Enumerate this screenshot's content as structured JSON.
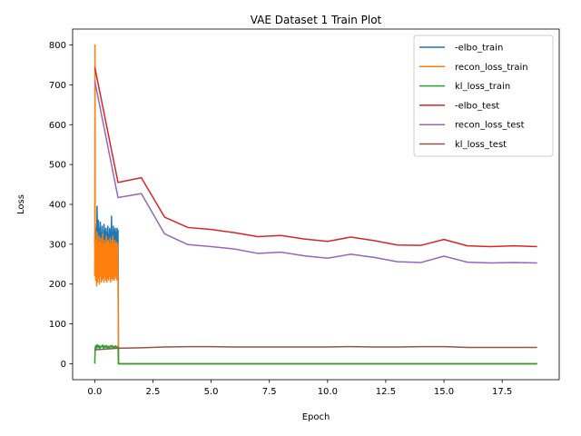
{
  "chart_data": {
    "type": "line",
    "title": "VAE Dataset 1 Train Plot",
    "xlabel": "Epoch",
    "ylabel": "Loss",
    "xlim": [
      -0.95,
      19.95
    ],
    "ylim": [
      -40,
      840
    ],
    "xticks": [
      0,
      2.5,
      5,
      7.5,
      10,
      12.5,
      15,
      17.5
    ],
    "xtick_labels": [
      "0.0",
      "2.5",
      "5.0",
      "7.5",
      "10.0",
      "12.5",
      "15.0",
      "17.5"
    ],
    "yticks": [
      0,
      100,
      200,
      300,
      400,
      500,
      600,
      700,
      800
    ],
    "ytick_labels": [
      "0",
      "100",
      "200",
      "300",
      "400",
      "500",
      "600",
      "700",
      "800"
    ],
    "legend_position": "top-right",
    "series": [
      {
        "name": "-elbo_train",
        "color": "#1f77b4",
        "x": [
          0,
          0.02,
          0.04,
          0.06,
          0.08,
          0.1,
          0.12,
          0.14,
          0.16,
          0.18,
          0.2,
          0.22,
          0.24,
          0.26,
          0.28,
          0.3,
          0.32,
          0.34,
          0.36,
          0.38,
          0.4,
          0.42,
          0.44,
          0.46,
          0.48,
          0.5,
          0.52,
          0.54,
          0.56,
          0.58,
          0.6,
          0.62,
          0.64,
          0.66,
          0.68,
          0.7,
          0.72,
          0.74,
          0.76,
          0.78,
          0.8,
          0.82,
          0.84,
          0.86,
          0.88,
          0.9,
          0.92,
          0.94,
          0.96,
          0.98,
          1.0,
          1.02,
          19.0
        ],
        "y": [
          300,
          350,
          310,
          340,
          290,
          395,
          270,
          330,
          360,
          300,
          340,
          280,
          355,
          310,
          330,
          275,
          345,
          300,
          320,
          290,
          350,
          305,
          335,
          280,
          340,
          300,
          330,
          285,
          345,
          310,
          325,
          280,
          340,
          300,
          335,
          290,
          370,
          300,
          330,
          285,
          345,
          300,
          335,
          290,
          340,
          305,
          330,
          295,
          340,
          300,
          335,
          0,
          0
        ]
      },
      {
        "name": "recon_loss_train",
        "color": "#ff7f0e",
        "x": [
          0,
          0.01,
          0.02,
          0.04,
          0.06,
          0.08,
          0.1,
          0.12,
          0.14,
          0.16,
          0.18,
          0.2,
          0.22,
          0.24,
          0.26,
          0.28,
          0.3,
          0.32,
          0.34,
          0.36,
          0.38,
          0.4,
          0.42,
          0.44,
          0.46,
          0.48,
          0.5,
          0.52,
          0.54,
          0.56,
          0.58,
          0.6,
          0.62,
          0.64,
          0.66,
          0.68,
          0.7,
          0.72,
          0.74,
          0.76,
          0.78,
          0.8,
          0.82,
          0.84,
          0.86,
          0.88,
          0.9,
          0.92,
          0.94,
          0.96,
          0.98,
          1.0,
          1.02,
          19.0
        ],
        "y": [
          220,
          800,
          300,
          210,
          310,
          195,
          330,
          205,
          300,
          215,
          320,
          200,
          305,
          220,
          315,
          205,
          300,
          210,
          325,
          215,
          300,
          205,
          310,
          220,
          300,
          210,
          320,
          205,
          305,
          215,
          310,
          210,
          300,
          220,
          315,
          205,
          300,
          215,
          310,
          210,
          320,
          215,
          300,
          210,
          310,
          220,
          300,
          215,
          305,
          210,
          300,
          215,
          0,
          0
        ]
      },
      {
        "name": "kl_loss_train",
        "color": "#2ca02c",
        "x": [
          0,
          0.02,
          0.04,
          0.06,
          0.08,
          0.1,
          0.14,
          0.18,
          0.22,
          0.26,
          0.3,
          0.34,
          0.38,
          0.42,
          0.46,
          0.5,
          0.54,
          0.58,
          0.62,
          0.66,
          0.7,
          0.74,
          0.78,
          0.82,
          0.86,
          0.9,
          0.94,
          0.98,
          1.0,
          1.02,
          19.0
        ],
        "y": [
          0,
          40,
          45,
          38,
          44,
          48,
          40,
          46,
          38,
          44,
          42,
          47,
          39,
          45,
          41,
          46,
          40,
          44,
          38,
          45,
          42,
          46,
          39,
          44,
          41,
          45,
          40,
          43,
          42,
          0,
          0
        ]
      },
      {
        "name": "-elbo_test",
        "color": "#d62728",
        "x": [
          0,
          1,
          2,
          3,
          4,
          5,
          6,
          7,
          8,
          9,
          10,
          11,
          12,
          13,
          14,
          15,
          16,
          17,
          18,
          19
        ],
        "y": [
          745,
          455,
          467,
          368,
          342,
          337,
          329,
          319,
          322,
          313,
          307,
          318,
          309,
          298,
          297,
          312,
          296,
          294,
          296,
          294
        ]
      },
      {
        "name": "recon_loss_test",
        "color": "#9467bd",
        "x": [
          0,
          1,
          2,
          3,
          4,
          5,
          6,
          7,
          8,
          9,
          10,
          11,
          12,
          13,
          14,
          15,
          16,
          17,
          18,
          19
        ],
        "y": [
          710,
          417,
          427,
          326,
          299,
          294,
          288,
          277,
          280,
          271,
          265,
          275,
          267,
          256,
          254,
          270,
          255,
          253,
          254,
          253
        ]
      },
      {
        "name": "kl_loss_test",
        "color": "#8c564b",
        "x": [
          0,
          1,
          2,
          3,
          4,
          5,
          6,
          7,
          8,
          9,
          10,
          11,
          12,
          13,
          14,
          15,
          16,
          17,
          18,
          19
        ],
        "y": [
          35,
          39,
          40,
          42,
          43,
          43,
          42,
          42,
          42,
          42,
          42,
          43,
          42,
          42,
          43,
          43,
          41,
          41,
          41,
          41
        ]
      }
    ]
  }
}
